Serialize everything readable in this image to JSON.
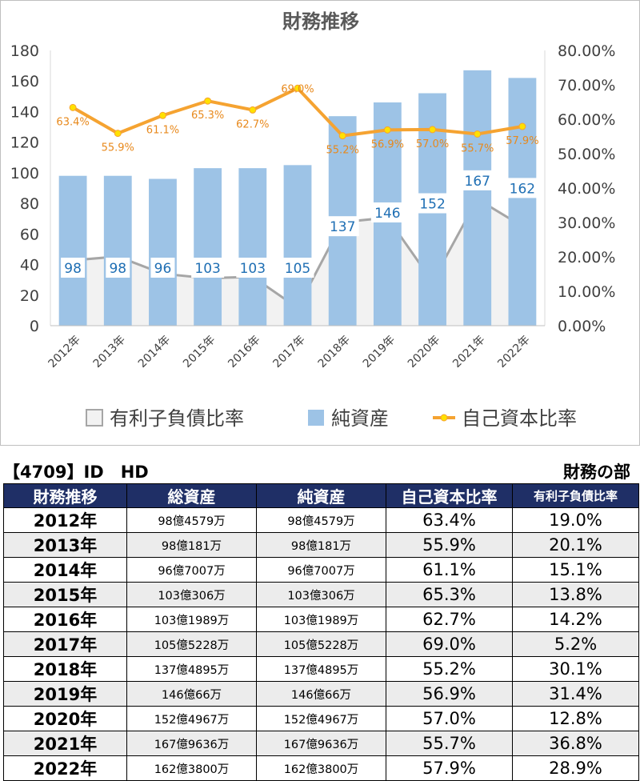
{
  "chart_data": {
    "type": "bar",
    "title": "財務推移",
    "categories": [
      "2012年",
      "2013年",
      "2014年",
      "2015年",
      "2016年",
      "2017年",
      "2018年",
      "2019年",
      "2020年",
      "2021年",
      "2022年"
    ],
    "series": [
      {
        "name": "有利子負債比率",
        "type": "area",
        "axis": "right",
        "values": [
          19.0,
          20.1,
          15.1,
          13.8,
          14.2,
          5.2,
          30.1,
          31.4,
          12.8,
          36.8,
          28.9
        ],
        "color": "#a6a6a6",
        "fill": "#f2f2f2"
      },
      {
        "name": "純資産",
        "type": "bar",
        "axis": "left",
        "values": [
          98,
          98,
          96,
          103,
          103,
          105,
          137,
          146,
          152,
          167,
          162
        ],
        "labels": [
          "98",
          "98",
          "96",
          "103",
          "103",
          "105",
          "137",
          "146",
          "152",
          "167",
          "162"
        ],
        "color": "#9dc3e6"
      },
      {
        "name": "自己資本比率",
        "type": "line",
        "axis": "right",
        "values": [
          63.4,
          55.9,
          61.1,
          65.3,
          62.7,
          69.0,
          55.2,
          56.9,
          57.0,
          55.7,
          57.9
        ],
        "labels": [
          "63.4%",
          "55.9%",
          "61.1%",
          "65.3%",
          "62.7%",
          "69.0%",
          "55.2%",
          "56.9%",
          "57.0%",
          "55.7%",
          "57.9%"
        ],
        "color": "#f5a331",
        "marker": "#ffe100"
      }
    ],
    "ylim": [
      0,
      180
    ],
    "yticks": [
      "0",
      "20",
      "40",
      "60",
      "80",
      "100",
      "120",
      "140",
      "160",
      "180"
    ],
    "y2lim": [
      0,
      80
    ],
    "y2ticks": [
      "0.00%",
      "10.00%",
      "20.00%",
      "30.00%",
      "40.00%",
      "50.00%",
      "60.00%",
      "70.00%",
      "80.00%"
    ],
    "legend_position": "bottom"
  },
  "company_title": "【4709】ID　HD",
  "section_title": "財務の部",
  "table": {
    "headers": [
      "財務推移",
      "総資産",
      "純資産",
      "自己資本比率",
      "有利子負債比率"
    ],
    "rows": [
      [
        "2012年",
        "98億4579万",
        "98億4579万",
        "63.4%",
        "19.0%"
      ],
      [
        "2013年",
        "98億181万",
        "98億181万",
        "55.9%",
        "20.1%"
      ],
      [
        "2014年",
        "96億7007万",
        "96億7007万",
        "61.1%",
        "15.1%"
      ],
      [
        "2015年",
        "103億306万",
        "103億306万",
        "65.3%",
        "13.8%"
      ],
      [
        "2016年",
        "103億1989万",
        "103億1989万",
        "62.7%",
        "14.2%"
      ],
      [
        "2017年",
        "105億5228万",
        "105億5228万",
        "69.0%",
        "5.2%"
      ],
      [
        "2018年",
        "137億4895万",
        "137億4895万",
        "55.2%",
        "30.1%"
      ],
      [
        "2019年",
        "146億66万",
        "146億66万",
        "56.9%",
        "31.4%"
      ],
      [
        "2020年",
        "152億4967万",
        "152億4967万",
        "57.0%",
        "12.8%"
      ],
      [
        "2021年",
        "167億9636万",
        "167億9636万",
        "55.7%",
        "36.8%"
      ],
      [
        "2022年",
        "162億3800万",
        "162億3800万",
        "57.9%",
        "28.9%"
      ]
    ]
  }
}
